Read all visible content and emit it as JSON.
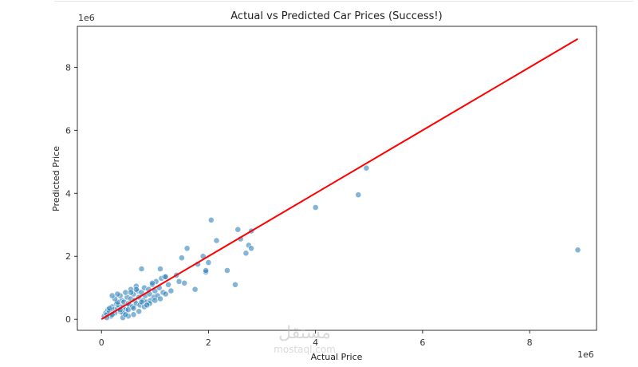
{
  "chart_data": {
    "type": "scatter",
    "title": "Actual vs Predicted Car Prices (Success!)",
    "xlabel": "Actual Price",
    "ylabel": "Predicted Price",
    "x_offset_label": "1e6",
    "y_offset_label": "1e6",
    "xlim": [
      -0.45,
      9.25
    ],
    "ylim": [
      -0.35,
      9.3
    ],
    "x_ticks": [
      0,
      2,
      4,
      6,
      8
    ],
    "y_ticks": [
      0,
      2,
      4,
      6,
      8
    ],
    "grid": false,
    "colors": {
      "points": "#1f77b4",
      "fit_line": "#ff0000"
    },
    "fit_line": {
      "x": [
        0,
        8.9
      ],
      "y": [
        0,
        8.9
      ]
    },
    "points": {
      "x": [
        0.05,
        0.08,
        0.1,
        0.12,
        0.15,
        0.18,
        0.2,
        0.22,
        0.25,
        0.28,
        0.3,
        0.32,
        0.35,
        0.38,
        0.4,
        0.42,
        0.45,
        0.48,
        0.5,
        0.52,
        0.55,
        0.58,
        0.6,
        0.62,
        0.65,
        0.68,
        0.7,
        0.72,
        0.75,
        0.78,
        0.8,
        0.82,
        0.85,
        0.88,
        0.9,
        0.92,
        0.95,
        0.98,
        1.0,
        1.02,
        1.05,
        1.08,
        1.1,
        1.12,
        1.15,
        1.18,
        1.2,
        1.25,
        1.3,
        0.1,
        0.2,
        0.3,
        0.4,
        0.5,
        0.6,
        0.7,
        0.8,
        0.9,
        1.0,
        0.15,
        0.25,
        0.35,
        0.45,
        0.55,
        0.65,
        0.75,
        0.85,
        0.95,
        0.3,
        0.4,
        0.5,
        0.6,
        0.2,
        0.35,
        0.45,
        0.55,
        0.65,
        0.75,
        1.1,
        1.2,
        1.4,
        1.45,
        1.5,
        1.55,
        1.6,
        1.75,
        1.8,
        1.9,
        1.95,
        2.0,
        2.05,
        1.95,
        2.15,
        2.35,
        2.5,
        2.55,
        2.6,
        2.7,
        2.75,
        2.8,
        2.8,
        4.0,
        4.8,
        4.95,
        8.9
      ],
      "y": [
        0.1,
        0.2,
        0.15,
        0.3,
        0.25,
        0.1,
        0.4,
        0.3,
        0.2,
        0.5,
        0.35,
        0.45,
        0.25,
        0.6,
        0.4,
        0.55,
        0.3,
        0.7,
        0.5,
        0.45,
        0.65,
        0.4,
        0.8,
        0.6,
        0.5,
        0.9,
        0.7,
        0.45,
        0.85,
        0.6,
        1.0,
        0.75,
        0.55,
        0.95,
        0.8,
        0.6,
        1.1,
        0.7,
        0.9,
        1.2,
        0.75,
        1.0,
        0.65,
        1.3,
        0.85,
        1.35,
        0.8,
        1.1,
        0.9,
        0.05,
        0.15,
        0.55,
        0.2,
        0.3,
        0.35,
        0.25,
        0.4,
        0.5,
        0.6,
        0.35,
        0.65,
        0.75,
        0.85,
        0.95,
        1.05,
        0.55,
        0.45,
        1.15,
        0.8,
        0.05,
        0.1,
        0.15,
        0.75,
        0.3,
        0.15,
        0.85,
        0.95,
        1.6,
        1.6,
        1.35,
        1.4,
        1.2,
        1.95,
        1.15,
        2.25,
        0.95,
        1.75,
        2.0,
        1.5,
        1.8,
        3.15,
        1.55,
        2.5,
        1.55,
        1.1,
        2.85,
        2.55,
        2.1,
        2.35,
        2.25,
        2.8,
        3.55,
        3.95,
        4.8,
        2.2
      ]
    }
  },
  "watermark": {
    "arabic": "مستقل",
    "latin": "mostaql.com"
  }
}
